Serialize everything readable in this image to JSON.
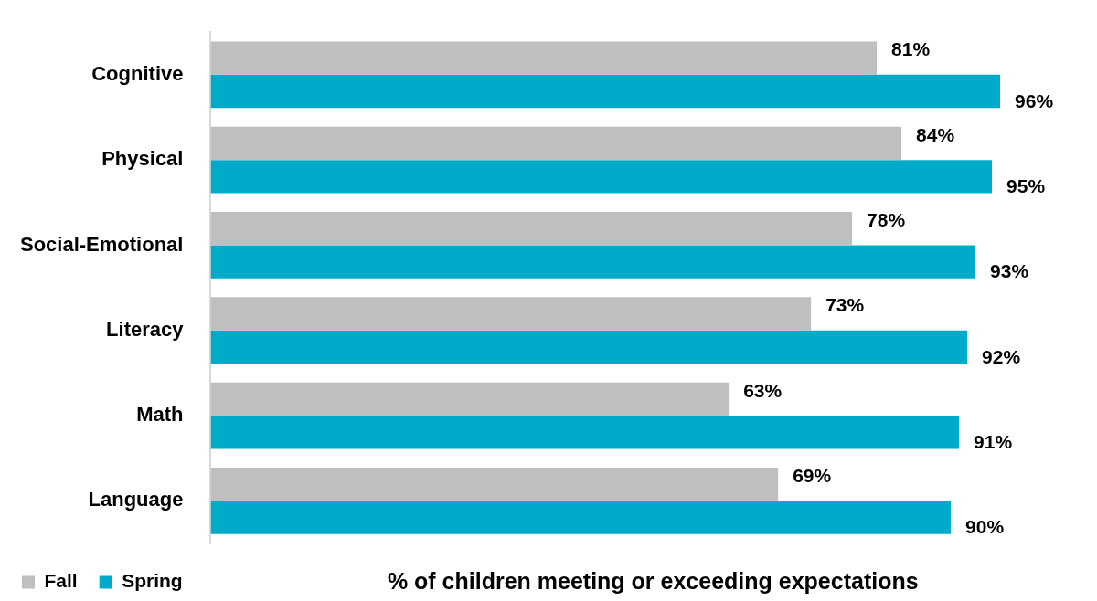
{
  "chart_data": {
    "type": "bar",
    "orientation": "horizontal",
    "xlabel": "% of children meeting or exceeding expectations",
    "categories": [
      "Cognitive",
      "Physical",
      "Social-Emotional",
      "Literacy",
      "Math",
      "Language"
    ],
    "grid": false,
    "legend": "bottom left",
    "series": [
      {
        "name": "Fall",
        "color": "#bfbfbf",
        "values": [
          81,
          84,
          78,
          73,
          63,
          69
        ],
        "value_labels": [
          "81%",
          "84%",
          "78%",
          "73%",
          "63%",
          "69%"
        ]
      },
      {
        "name": "Spring",
        "color": "#00abc9",
        "values": [
          96,
          95,
          93,
          92,
          91,
          90
        ],
        "value_labels": [
          "96%",
          "95%",
          "93%",
          "92%",
          "91%",
          "90%"
        ]
      }
    ]
  }
}
